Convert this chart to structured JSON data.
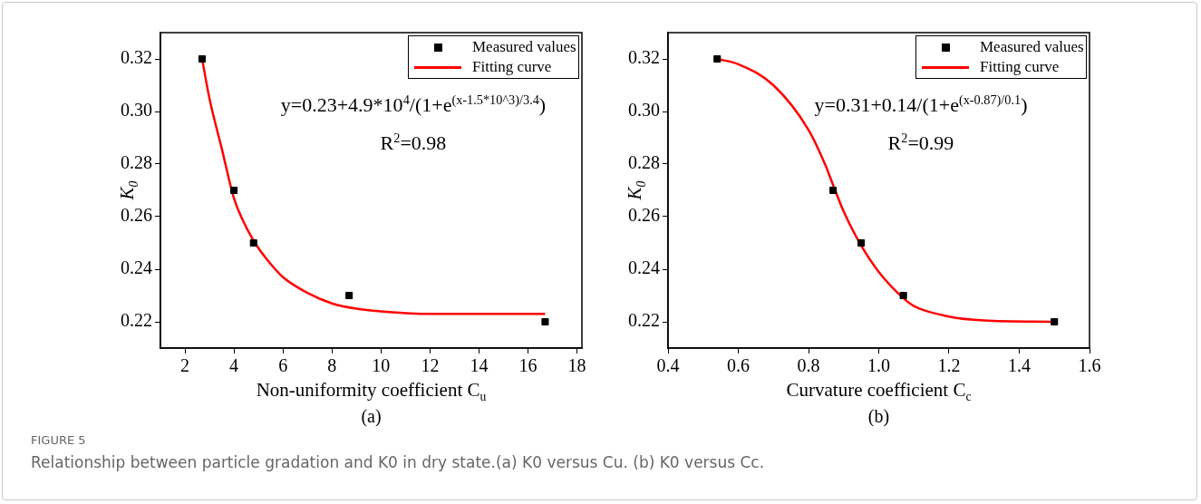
{
  "chart_data": [
    {
      "type": "scatter",
      "xlabel": "Non-uniformity coefficient C$_{u}$",
      "ylabel": "K$_{0}$",
      "xlim": [
        1,
        18.2
      ],
      "xticks": [
        2,
        4,
        6,
        8,
        10,
        12,
        14,
        16,
        18
      ],
      "ylim": [
        0.21,
        0.33
      ],
      "yticks": [
        0.22,
        0.24,
        0.26,
        0.28,
        {
          "value": 0.3,
          "label": "0.30"
        },
        0.32
      ],
      "legend": "top right",
      "series": [
        {
          "name": "Measured values",
          "type": "scatter",
          "marker": "square",
          "color": "#000000",
          "x": [
            2.7,
            4,
            4.8,
            8.7,
            16.7
          ],
          "values": [
            0.32,
            0.27,
            0.25,
            0.23,
            0.22
          ]
        },
        {
          "name": "Fitting curve",
          "type": "line",
          "marker": "none",
          "line_style": "solid",
          "color": "#ff0000",
          "x": [
            2.7,
            3,
            3.5,
            4,
            4.5,
            5,
            5.5,
            6,
            7,
            8,
            9,
            10,
            12,
            14,
            16.7
          ],
          "values": [
            0.32,
            0.305,
            0.286,
            0.267,
            0.256,
            0.248,
            0.242,
            0.237,
            0.231,
            0.227,
            0.225,
            0.224,
            0.223,
            0.223,
            0.223
          ]
        }
      ],
      "annotations": [
        "y=0.23+4.9*10$^{4}$/(1+e$^{(x-1.5*10^3)/3.4}$)",
        "R$^{2}$=0.98",
        "(a)",
        "FIGURE 5",
        "Relationship between particle gradation and K0 in dry state.(a) K0 versus Cu. (b) K0 versus Cc."
      ]
    },
    {
      "type": "scatter",
      "xlabel": "Curvature coefficient C$_{c}$",
      "ylabel": "K$_{0}$",
      "xlim": [
        0.4,
        1.6
      ],
      "xticks": [
        {
          "value": 0.4,
          "label": "0.4"
        },
        {
          "value": 0.6,
          "label": "0.6"
        },
        {
          "value": 0.8,
          "label": "0.8"
        },
        {
          "value": 1.0,
          "label": "1.0"
        },
        {
          "value": 1.2,
          "label": "1.2"
        },
        {
          "value": 1.4,
          "label": "1.4"
        },
        {
          "value": 1.6,
          "label": "1.6"
        }
      ],
      "ylim": [
        0.21,
        0.33
      ],
      "yticks": [
        0.22,
        0.24,
        0.26,
        0.28,
        {
          "value": 0.3,
          "label": "0.30"
        },
        0.32
      ],
      "legend": "top right",
      "series": [
        {
          "name": "Measured values",
          "type": "scatter",
          "marker": "square",
          "color": "#000000",
          "x": [
            0.54,
            0.87,
            0.95,
            1.07,
            1.5
          ],
          "values": [
            0.32,
            0.27,
            0.25,
            0.23,
            0.22
          ]
        },
        {
          "name": "Fitting curve",
          "type": "line",
          "marker": "none",
          "line_style": "solid",
          "color": "#ff0000",
          "x": [
            0.54,
            0.6,
            0.7,
            0.8,
            0.85,
            0.87,
            0.9,
            0.95,
            1.0,
            1.07,
            1.1,
            1.2,
            1.3,
            1.5
          ],
          "values": [
            0.32,
            0.318,
            0.31,
            0.293,
            0.279,
            0.272,
            0.262,
            0.249,
            0.239,
            0.229,
            0.226,
            0.222,
            0.2205,
            0.22
          ]
        }
      ],
      "annotations": [
        "y=0.31+0.14/(1+e$^{(x-0.87)/0.1}$)",
        "R$^{2}$=0.99",
        "(b)"
      ]
    }
  ]
}
